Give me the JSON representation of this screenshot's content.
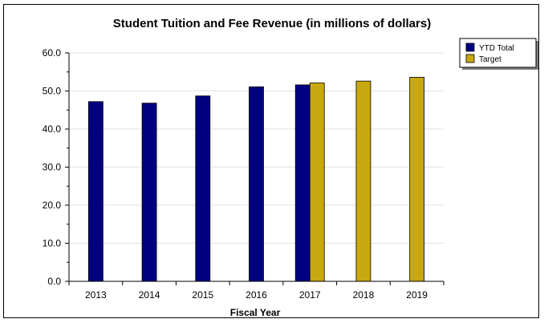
{
  "chart_data": {
    "type": "bar",
    "title": "Student Tuition and Fee Revenue (in millions of dollars)",
    "xlabel": "Fiscal Year",
    "ylabel": "",
    "categories": [
      "2013",
      "2014",
      "2015",
      "2016",
      "2017",
      "2018",
      "2019"
    ],
    "ylim": [
      0,
      60
    ],
    "yticks": [
      "0.0",
      "10.0",
      "20.0",
      "30.0",
      "40.0",
      "50.0",
      "60.0"
    ],
    "grid": true,
    "legend_position": "top-right",
    "series": [
      {
        "name": "YTD Total",
        "color": "#000080",
        "values": [
          47.2,
          46.8,
          48.7,
          51.1,
          51.6,
          null,
          null
        ]
      },
      {
        "name": "Target",
        "color": "#c8a810",
        "values": [
          null,
          null,
          null,
          null,
          52.1,
          52.6,
          53.6
        ]
      }
    ]
  }
}
